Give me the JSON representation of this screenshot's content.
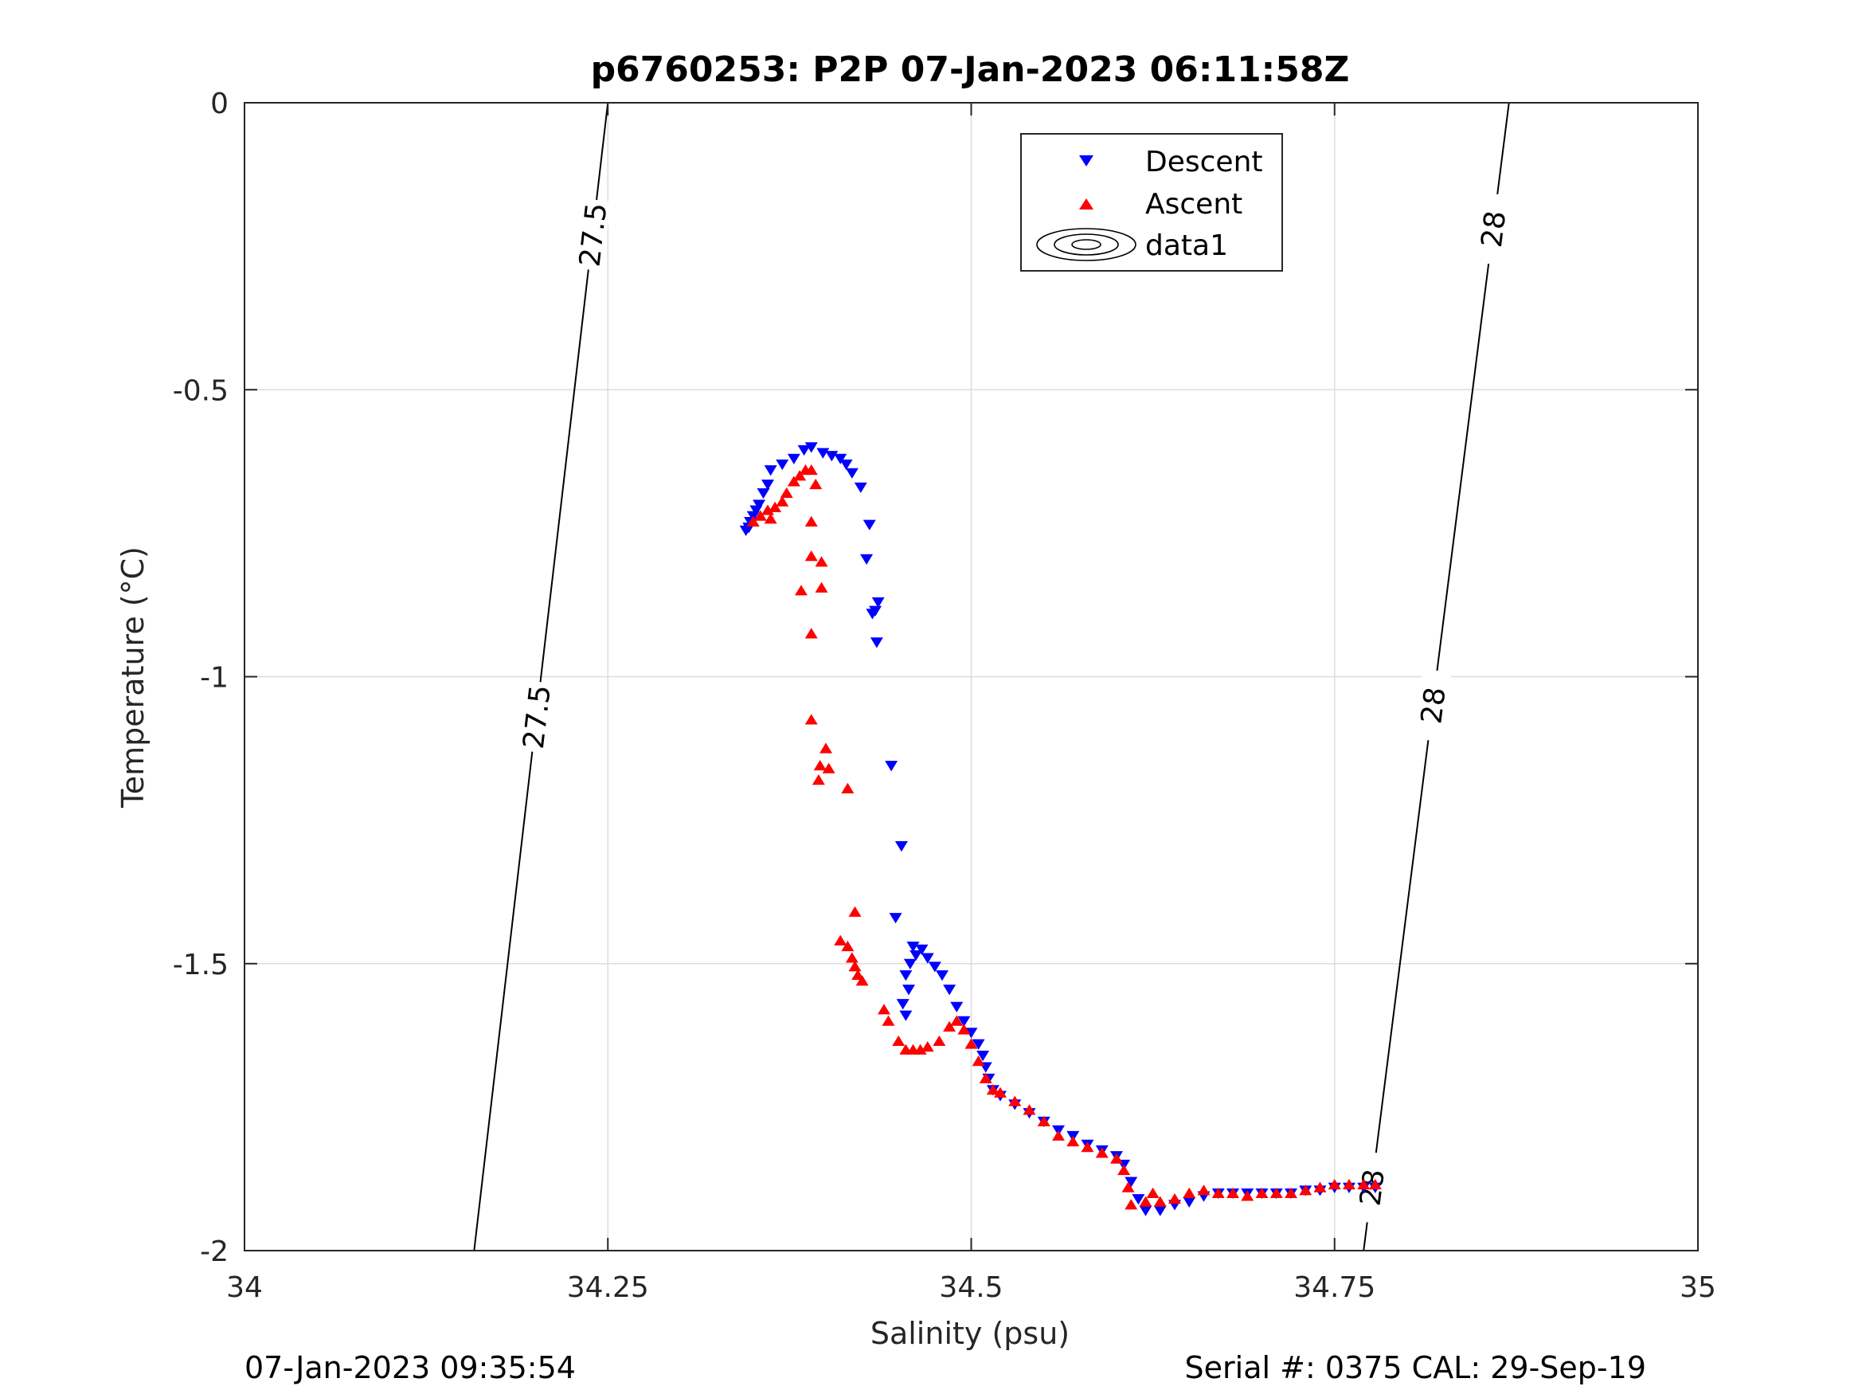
{
  "chart_data": {
    "type": "scatter",
    "title": "p6760253: P2P 07-Jan-2023 06:11:58Z",
    "xlabel": "Salinity (psu)",
    "ylabel": "Temperature (°C)",
    "xlim": [
      34,
      35
    ],
    "ylim": [
      -2,
      0
    ],
    "xticks": [
      34,
      34.25,
      34.5,
      34.75,
      35
    ],
    "xtick_labels": [
      "34",
      "34.25",
      "34.5",
      "34.75",
      "35"
    ],
    "yticks": [
      0,
      -0.5,
      -1,
      -1.5,
      -2
    ],
    "ytick_labels": [
      "0",
      "-0.5",
      "-1",
      "-1.5",
      "-2"
    ],
    "grid": true,
    "legend": {
      "placement": "top-inside",
      "entries": [
        "Descent",
        "Ascent",
        "data1"
      ]
    },
    "series": [
      {
        "name": "Descent",
        "marker": "triangle-down",
        "color": "#0000ff",
        "points": [
          [
            34.347,
            -0.74
          ],
          [
            34.345,
            -0.745
          ],
          [
            34.348,
            -0.73
          ],
          [
            34.35,
            -0.72
          ],
          [
            34.352,
            -0.71
          ],
          [
            34.354,
            -0.7
          ],
          [
            34.357,
            -0.68
          ],
          [
            34.36,
            -0.665
          ],
          [
            34.362,
            -0.64
          ],
          [
            34.37,
            -0.63
          ],
          [
            34.378,
            -0.62
          ],
          [
            34.385,
            -0.605
          ],
          [
            34.39,
            -0.6
          ],
          [
            34.398,
            -0.61
          ],
          [
            34.404,
            -0.615
          ],
          [
            34.41,
            -0.62
          ],
          [
            34.414,
            -0.63
          ],
          [
            34.418,
            -0.645
          ],
          [
            34.424,
            -0.67
          ],
          [
            34.43,
            -0.735
          ],
          [
            34.428,
            -0.795
          ],
          [
            34.436,
            -0.87
          ],
          [
            34.434,
            -0.885
          ],
          [
            34.432,
            -0.89
          ],
          [
            34.435,
            -0.94
          ],
          [
            34.445,
            -1.155
          ],
          [
            34.452,
            -1.295
          ],
          [
            34.448,
            -1.42
          ],
          [
            34.46,
            -1.47
          ],
          [
            34.462,
            -1.485
          ],
          [
            34.458,
            -1.5
          ],
          [
            34.455,
            -1.52
          ],
          [
            34.457,
            -1.545
          ],
          [
            34.453,
            -1.57
          ],
          [
            34.455,
            -1.59
          ],
          [
            34.466,
            -1.475
          ],
          [
            34.47,
            -1.49
          ],
          [
            34.475,
            -1.505
          ],
          [
            34.48,
            -1.52
          ],
          [
            34.485,
            -1.545
          ],
          [
            34.49,
            -1.575
          ],
          [
            34.495,
            -1.6
          ],
          [
            34.5,
            -1.62
          ],
          [
            34.505,
            -1.64
          ],
          [
            34.508,
            -1.66
          ],
          [
            34.51,
            -1.68
          ],
          [
            34.512,
            -1.7
          ],
          [
            34.515,
            -1.72
          ],
          [
            34.52,
            -1.73
          ],
          [
            34.53,
            -1.745
          ],
          [
            34.54,
            -1.76
          ],
          [
            34.55,
            -1.775
          ],
          [
            34.56,
            -1.79
          ],
          [
            34.57,
            -1.8
          ],
          [
            34.58,
            -1.815
          ],
          [
            34.59,
            -1.825
          ],
          [
            34.6,
            -1.835
          ],
          [
            34.605,
            -1.85
          ],
          [
            34.61,
            -1.88
          ],
          [
            34.615,
            -1.91
          ],
          [
            34.62,
            -1.93
          ],
          [
            34.63,
            -1.93
          ],
          [
            34.64,
            -1.92
          ],
          [
            34.65,
            -1.915
          ],
          [
            34.66,
            -1.905
          ],
          [
            34.67,
            -1.9
          ],
          [
            34.68,
            -1.9
          ],
          [
            34.69,
            -1.9
          ],
          [
            34.7,
            -1.9
          ],
          [
            34.71,
            -1.9
          ],
          [
            34.72,
            -1.9
          ],
          [
            34.73,
            -1.895
          ],
          [
            34.74,
            -1.895
          ],
          [
            34.75,
            -1.89
          ],
          [
            34.76,
            -1.89
          ],
          [
            34.77,
            -1.89
          ],
          [
            34.778,
            -1.89
          ]
        ]
      },
      {
        "name": "Ascent",
        "marker": "triangle-up",
        "color": "#ff0000",
        "points": [
          [
            34.35,
            -0.73
          ],
          [
            34.355,
            -0.72
          ],
          [
            34.36,
            -0.71
          ],
          [
            34.362,
            -0.725
          ],
          [
            34.365,
            -0.705
          ],
          [
            34.37,
            -0.695
          ],
          [
            34.373,
            -0.68
          ],
          [
            34.378,
            -0.66
          ],
          [
            34.382,
            -0.65
          ],
          [
            34.386,
            -0.64
          ],
          [
            34.39,
            -0.64
          ],
          [
            34.393,
            -0.665
          ],
          [
            34.39,
            -0.73
          ],
          [
            34.39,
            -0.79
          ],
          [
            34.397,
            -0.8
          ],
          [
            34.397,
            -0.845
          ],
          [
            34.383,
            -0.85
          ],
          [
            34.39,
            -0.925
          ],
          [
            34.39,
            -1.075
          ],
          [
            34.4,
            -1.125
          ],
          [
            34.396,
            -1.155
          ],
          [
            34.402,
            -1.16
          ],
          [
            34.395,
            -1.18
          ],
          [
            34.415,
            -1.195
          ],
          [
            34.42,
            -1.41
          ],
          [
            34.41,
            -1.46
          ],
          [
            34.415,
            -1.47
          ],
          [
            34.418,
            -1.49
          ],
          [
            34.42,
            -1.505
          ],
          [
            34.422,
            -1.52
          ],
          [
            34.425,
            -1.53
          ],
          [
            34.44,
            -1.58
          ],
          [
            34.443,
            -1.6
          ],
          [
            34.45,
            -1.635
          ],
          [
            34.455,
            -1.65
          ],
          [
            34.46,
            -1.65
          ],
          [
            34.465,
            -1.65
          ],
          [
            34.47,
            -1.645
          ],
          [
            34.478,
            -1.635
          ],
          [
            34.485,
            -1.61
          ],
          [
            34.49,
            -1.6
          ],
          [
            34.495,
            -1.615
          ],
          [
            34.5,
            -1.64
          ],
          [
            34.505,
            -1.67
          ],
          [
            34.51,
            -1.7
          ],
          [
            34.515,
            -1.72
          ],
          [
            34.52,
            -1.725
          ],
          [
            34.53,
            -1.74
          ],
          [
            34.54,
            -1.755
          ],
          [
            34.55,
            -1.775
          ],
          [
            34.56,
            -1.8
          ],
          [
            34.57,
            -1.81
          ],
          [
            34.58,
            -1.82
          ],
          [
            34.59,
            -1.83
          ],
          [
            34.6,
            -1.84
          ],
          [
            34.605,
            -1.86
          ],
          [
            34.608,
            -1.89
          ],
          [
            34.61,
            -1.92
          ],
          [
            34.62,
            -1.915
          ],
          [
            34.625,
            -1.9
          ],
          [
            34.63,
            -1.915
          ],
          [
            34.64,
            -1.91
          ],
          [
            34.65,
            -1.9
          ],
          [
            34.66,
            -1.895
          ],
          [
            34.67,
            -1.9
          ],
          [
            34.68,
            -1.9
          ],
          [
            34.69,
            -1.905
          ],
          [
            34.7,
            -1.9
          ],
          [
            34.71,
            -1.9
          ],
          [
            34.72,
            -1.9
          ],
          [
            34.73,
            -1.895
          ],
          [
            34.74,
            -1.89
          ],
          [
            34.75,
            -1.885
          ],
          [
            34.76,
            -1.885
          ],
          [
            34.77,
            -1.885
          ],
          [
            34.778,
            -1.885
          ]
        ]
      }
    ],
    "contours": [
      {
        "label": "27.5",
        "points": [
          [
            34.158,
            -2
          ],
          [
            34.25,
            0
          ]
        ],
        "label_positions": [
          -0.23,
          -1.07
        ]
      },
      {
        "label": "28",
        "points": [
          [
            34.77,
            -2
          ],
          [
            34.87,
            0
          ]
        ],
        "label_positions": [
          -0.22,
          -1.05,
          -1.89
        ]
      }
    ]
  },
  "footer": {
    "left": "07-Jan-2023 09:35:54",
    "right": "Serial #: 0375  CAL: 29-Sep-19"
  }
}
